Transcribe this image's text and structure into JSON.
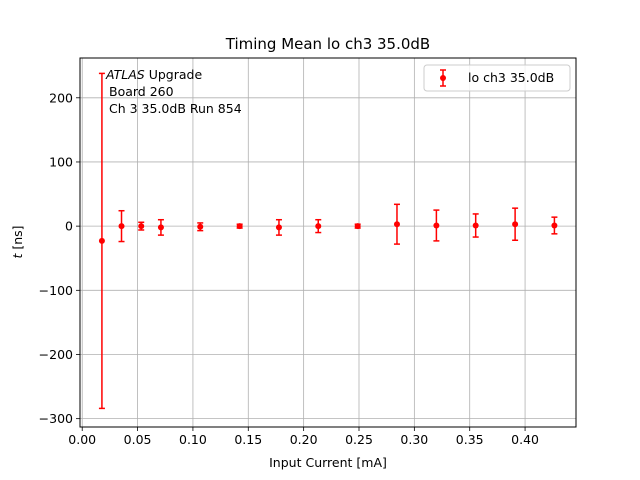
{
  "chart_data": {
    "type": "scatter",
    "title": "Timing Mean lo ch3 35.0dB",
    "xlabel": "Input Current [mA]",
    "ylabel_italic": "t",
    "ylabel_rest": " [ns]",
    "xlim": [
      -0.002,
      0.446
    ],
    "ylim": [
      -313,
      262
    ],
    "xticks": [
      0.0,
      0.05,
      0.1,
      0.15,
      0.2,
      0.25,
      0.3,
      0.35,
      0.4
    ],
    "xtick_labels": [
      "0.00",
      "0.05",
      "0.10",
      "0.15",
      "0.20",
      "0.25",
      "0.30",
      "0.35",
      "0.40"
    ],
    "yticks": [
      -300,
      -200,
      -100,
      0,
      100,
      200
    ],
    "ytick_labels": [
      "−300",
      "−200",
      "−100",
      "0",
      "100",
      "200"
    ],
    "grid": true,
    "legend_position": "top-right",
    "color": "#ff0000",
    "annotation": {
      "line1_italic": "ATLAS",
      "line1_rest": " Upgrade",
      "line2": "Board 260",
      "line3": "Ch 3 35.0dB  Run 854"
    },
    "series": [
      {
        "name": "lo ch3 35.0dB",
        "x": [
          0.0178,
          0.0355,
          0.0533,
          0.0711,
          0.1066,
          0.1422,
          0.1777,
          0.2132,
          0.2488,
          0.2843,
          0.3199,
          0.3554,
          0.391,
          0.4265
        ],
        "y": [
          -23,
          0,
          0,
          -2,
          -1,
          0,
          -2,
          0,
          0,
          3,
          1,
          1,
          3,
          1
        ],
        "err": [
          261,
          24,
          6,
          12,
          6,
          3,
          12,
          10,
          3,
          31,
          24,
          18,
          25,
          13
        ]
      }
    ]
  }
}
